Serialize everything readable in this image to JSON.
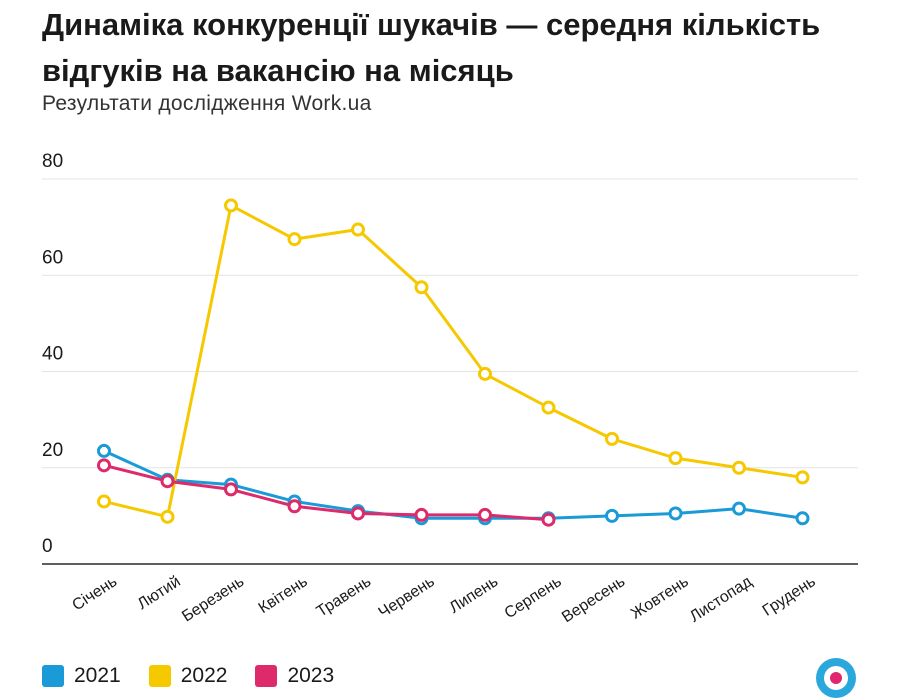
{
  "chart_data": {
    "type": "line",
    "title": "Динаміка конкуренції шукачів — середня кількість відгуків на вакансію на місяць",
    "subtitle": "Результати дослідження Work.ua",
    "xlabel": "",
    "ylabel": "",
    "ylim": [
      0,
      80
    ],
    "yticks": [
      0,
      20,
      40,
      60,
      80
    ],
    "ytick_labels": [
      "0",
      "20",
      "40",
      "60",
      "80"
    ],
    "grid": true,
    "legend_position": "bottom-left",
    "categories": [
      "Січень",
      "Лютий",
      "Березень",
      "Квітень",
      "Травень",
      "Червень",
      "Липень",
      "Серпень",
      "Вересень",
      "Жовтень",
      "Листопад",
      "Грудень"
    ],
    "series": [
      {
        "name": "2021",
        "color": "#1a9ad7",
        "values": [
          23.5,
          17.5,
          16.5,
          13,
          11,
          9.5,
          9.5,
          9.5,
          10,
          10.5,
          11.5,
          9.5
        ]
      },
      {
        "name": "2022",
        "color": "#f5c800",
        "values": [
          13,
          9.8,
          74.5,
          67.5,
          69.5,
          57.5,
          39.5,
          32.5,
          26,
          22,
          20,
          18
        ]
      },
      {
        "name": "2023",
        "color": "#dc2a6a",
        "values": [
          20.5,
          17.2,
          15.5,
          12,
          10.5,
          10.2,
          10.2,
          9.2,
          null,
          null,
          null,
          null
        ]
      }
    ]
  },
  "legend": {
    "items": [
      {
        "label": "2021",
        "color": "#1a9ad7"
      },
      {
        "label": "2022",
        "color": "#f5c800"
      },
      {
        "label": "2023",
        "color": "#dc2a6a"
      }
    ]
  },
  "logo": {
    "icon": "work-ua-logo-icon",
    "outer_color": "#2aa7dd",
    "dot_color": "#e0266e"
  }
}
